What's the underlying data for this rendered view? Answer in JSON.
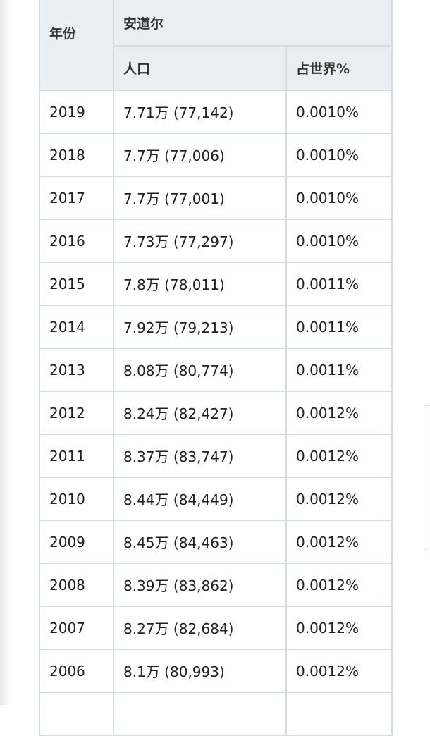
{
  "table": {
    "group_header": "安道尔",
    "columns": {
      "year": "年份",
      "population": "人口",
      "world_share": "占世界%"
    },
    "rows": [
      {
        "year": "2019",
        "population": "7.71万 (77,142)",
        "world_share": "0.0010%"
      },
      {
        "year": "2018",
        "population": "7.7万 (77,006)",
        "world_share": "0.0010%"
      },
      {
        "year": "2017",
        "population": "7.7万 (77,001)",
        "world_share": "0.0010%"
      },
      {
        "year": "2016",
        "population": "7.73万 (77,297)",
        "world_share": "0.0010%"
      },
      {
        "year": "2015",
        "population": "7.8万 (78,011)",
        "world_share": "0.0011%"
      },
      {
        "year": "2014",
        "population": "7.92万 (79,213)",
        "world_share": "0.0011%"
      },
      {
        "year": "2013",
        "population": "8.08万 (80,774)",
        "world_share": "0.0011%"
      },
      {
        "year": "2012",
        "population": "8.24万 (82,427)",
        "world_share": "0.0012%"
      },
      {
        "year": "2011",
        "population": "8.37万 (83,747)",
        "world_share": "0.0012%"
      },
      {
        "year": "2010",
        "population": "8.44万 (84,449)",
        "world_share": "0.0012%"
      },
      {
        "year": "2009",
        "population": "8.45万 (84,463)",
        "world_share": "0.0012%"
      },
      {
        "year": "2008",
        "population": "8.39万 (83,862)",
        "world_share": "0.0012%"
      },
      {
        "year": "2007",
        "population": "8.27万 (82,684)",
        "world_share": "0.0012%"
      },
      {
        "year": "2006",
        "population": "8.1万 (80,993)",
        "world_share": "0.0012%"
      }
    ]
  },
  "colors": {
    "header_bg": "#eaeef2",
    "border": "#d4dbe3",
    "text": "#222222"
  }
}
